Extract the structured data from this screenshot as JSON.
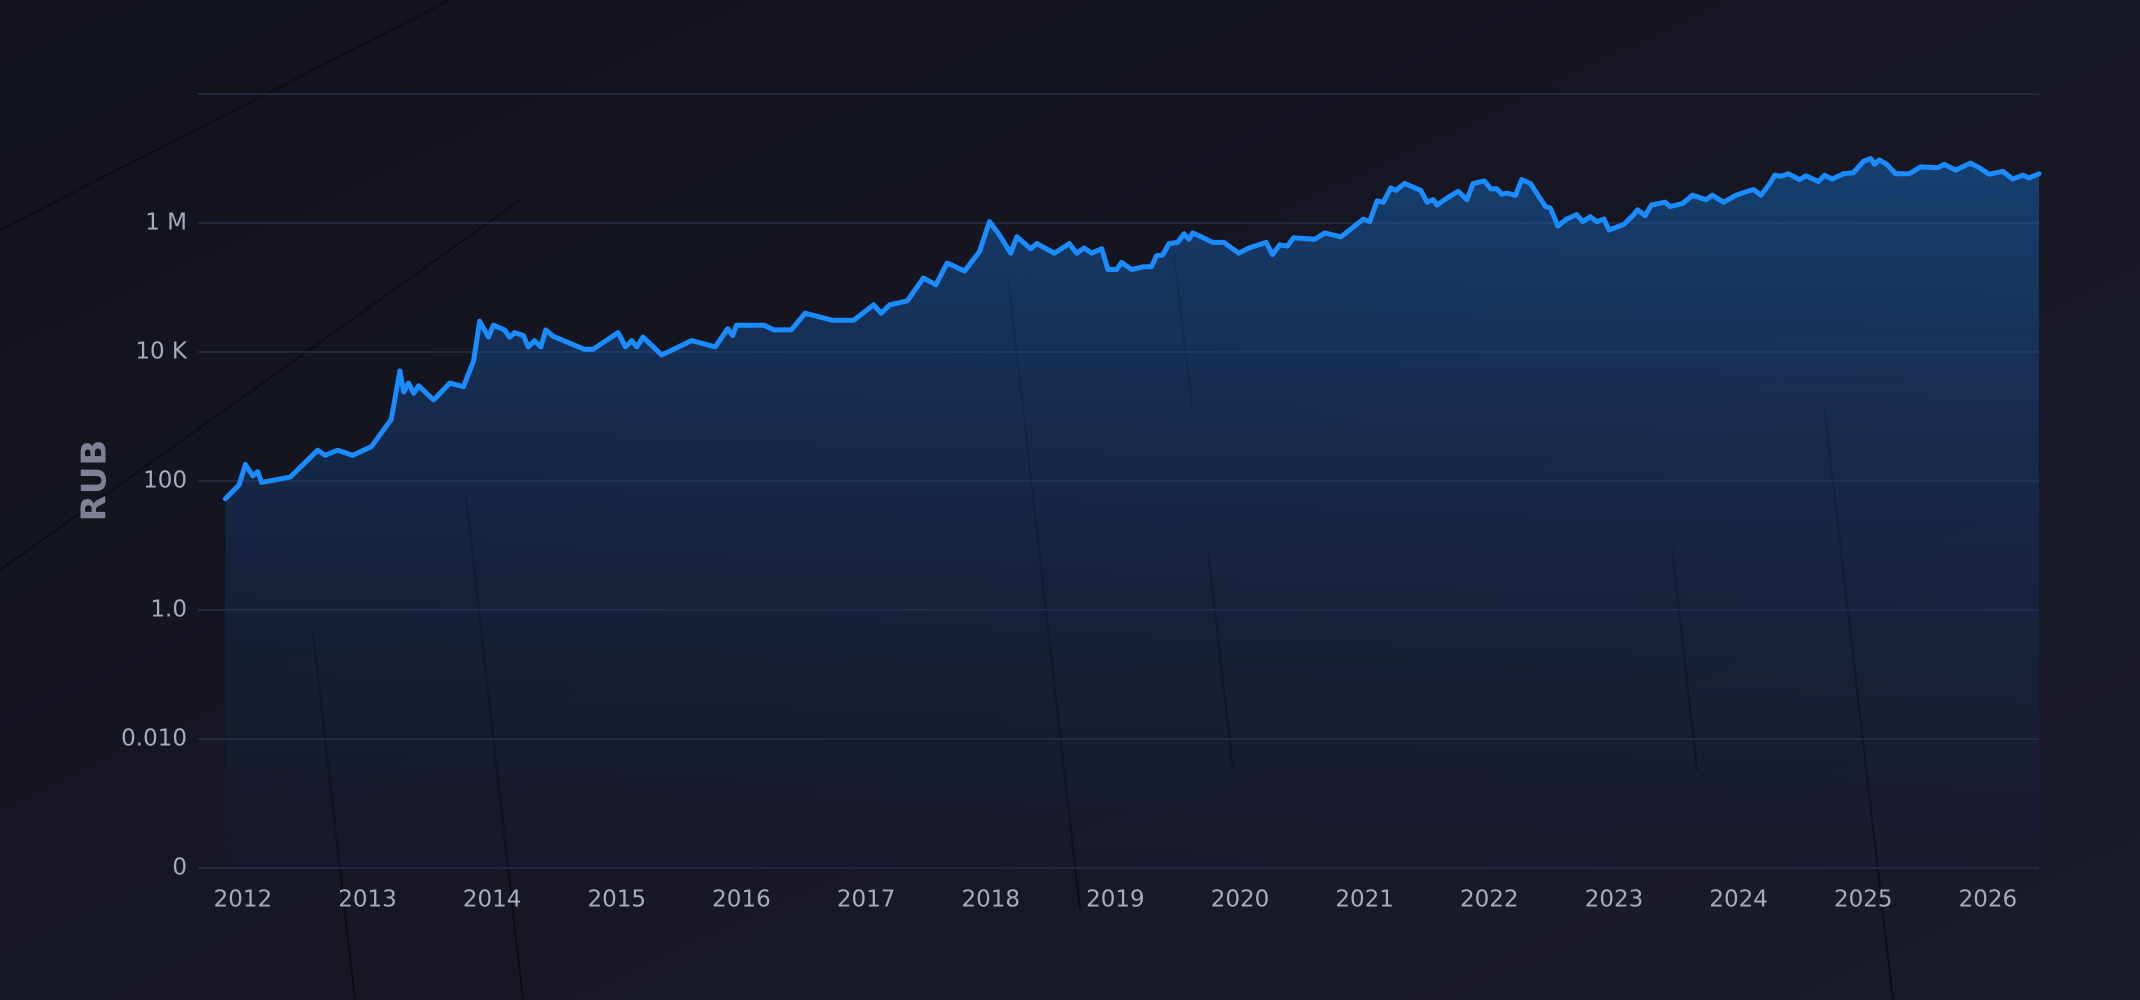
{
  "chart_data": {
    "type": "line",
    "y_label": "RUB",
    "yscale": "log",
    "grid": true,
    "color": "#1a8cff",
    "xlim": [
      2011.64,
      2026.41
    ],
    "xticks": [
      2012,
      2013,
      2014,
      2015,
      2016,
      2017,
      2018,
      2019,
      2020,
      2021,
      2022,
      2023,
      2024,
      2025,
      2026
    ],
    "ylim": [
      0.0001,
      100000000
    ],
    "yticks": [
      {
        "value": 0.0001,
        "label": "0"
      },
      {
        "value": 0.01,
        "label": "0.010"
      },
      {
        "value": 1,
        "label": "1.0"
      },
      100,
      {
        "value": 10000,
        "label": "10 K"
      },
      {
        "value": 1000000,
        "label": "1 M"
      }
    ],
    "x": [
      2011.86,
      2011.97,
      2012.02,
      2012.08,
      2012.12,
      2012.15,
      2012.38,
      2012.6,
      2012.66,
      2012.76,
      2012.88,
      2013.03,
      2013.19,
      2013.26,
      2013.29,
      2013.33,
      2013.37,
      2013.41,
      2013.53,
      2013.66,
      2013.77,
      2013.85,
      2013.9,
      2013.97,
      2014.01,
      2014.1,
      2014.14,
      2014.18,
      2014.25,
      2014.29,
      2014.34,
      2014.39,
      2014.43,
      2014.49,
      2014.74,
      2014.81,
      2015.01,
      2015.07,
      2015.12,
      2015.16,
      2015.21,
      2015.36,
      2015.6,
      2015.79,
      2015.89,
      2015.93,
      2015.96,
      2016.18,
      2016.26,
      2016.4,
      2016.51,
      2016.73,
      2016.9,
      2017.06,
      2017.12,
      2017.19,
      2017.33,
      2017.46,
      2017.56,
      2017.65,
      2017.79,
      2017.91,
      2017.99,
      2018.07,
      2018.16,
      2018.21,
      2018.32,
      2018.37,
      2018.51,
      2018.63,
      2018.69,
      2018.75,
      2018.81,
      2018.89,
      2018.94,
      2019.01,
      2019.05,
      2019.13,
      2019.23,
      2019.29,
      2019.33,
      2019.38,
      2019.43,
      2019.5,
      2019.55,
      2019.59,
      2019.62,
      2019.69,
      2019.78,
      2019.87,
      2019.99,
      2020.07,
      2020.21,
      2020.26,
      2020.32,
      2020.38,
      2020.43,
      2020.6,
      2020.68,
      2020.81,
      2020.99,
      2021.04,
      2021.1,
      2021.15,
      2021.21,
      2021.25,
      2021.32,
      2021.45,
      2021.5,
      2021.55,
      2021.58,
      2021.67,
      2021.75,
      2021.82,
      2021.87,
      2021.96,
      2022.01,
      2022.06,
      2022.1,
      2022.14,
      2022.21,
      2022.26,
      2022.33,
      2022.38,
      2022.45,
      2022.49,
      2022.55,
      2022.62,
      2022.7,
      2022.75,
      2022.81,
      2022.86,
      2022.92,
      2022.96,
      2023.08,
      2023.15,
      2023.19,
      2023.25,
      2023.3,
      2023.41,
      2023.45,
      2023.55,
      2023.63,
      2023.74,
      2023.79,
      2023.88,
      2023.98,
      2024.07,
      2024.12,
      2024.18,
      2024.25,
      2024.29,
      2024.34,
      2024.4,
      2024.49,
      2024.54,
      2024.64,
      2024.69,
      2024.75,
      2024.84,
      2024.92,
      2025.0,
      2025.06,
      2025.09,
      2025.13,
      2025.19,
      2025.26,
      2025.37,
      2025.46,
      2025.6,
      2025.65,
      2025.74,
      2025.86,
      2025.93,
      2026.01,
      2026.12,
      2026.2,
      2026.28,
      2026.33,
      2026.41
    ],
    "values": [
      53,
      87,
      180,
      120,
      140,
      95,
      115,
      300,
      250,
      300,
      250,
      340,
      900,
      5100,
      2400,
      3300,
      2300,
      3000,
      1800,
      3300,
      2900,
      7200,
      30000,
      17000,
      26000,
      22000,
      17000,
      20000,
      18000,
      12000,
      15000,
      12000,
      22000,
      17500,
      11000,
      11000,
      20000,
      12000,
      15000,
      12000,
      17000,
      9000,
      15000,
      12000,
      23000,
      18000,
      26000,
      26000,
      22000,
      22000,
      40000,
      31000,
      31000,
      54000,
      40000,
      54000,
      62000,
      140000,
      110000,
      240000,
      180000,
      360000,
      1050000,
      650000,
      340000,
      610000,
      400000,
      480000,
      340000,
      480000,
      340000,
      410000,
      340000,
      400000,
      190000,
      190000,
      245000,
      190000,
      210000,
      210000,
      310000,
      320000,
      480000,
      500000,
      680000,
      560000,
      700000,
      610000,
      500000,
      500000,
      340000,
      410000,
      500000,
      325000,
      460000,
      440000,
      590000,
      560000,
      700000,
      610000,
      1150000,
      1050000,
      2200000,
      2100000,
      3500000,
      3200000,
      4100000,
      3200000,
      2100000,
      2300000,
      1900000,
      2500000,
      3100000,
      2300000,
      4100000,
      4500000,
      3400000,
      3400000,
      2800000,
      2900000,
      2700000,
      4700000,
      4100000,
      2900000,
      1800000,
      1700000,
      900000,
      1150000,
      1350000,
      1050000,
      1250000,
      1050000,
      1150000,
      780000,
      950000,
      1300000,
      1600000,
      1300000,
      1900000,
      2100000,
      1800000,
      2000000,
      2700000,
      2300000,
      2700000,
      2100000,
      2700000,
      3100000,
      3300000,
      2700000,
      4100000,
      5500000,
      5300000,
      5800000,
      4700000,
      5400000,
      4400000,
      5500000,
      4800000,
      5800000,
      6000000,
      9000000,
      10000000,
      8200000,
      9500000,
      8100000,
      5800000,
      5800000,
      7400000,
      7200000,
      8100000,
      6600000,
      8500000,
      7200000,
      5700000,
      6300000,
      4800000,
      5500000,
      5000000,
      5800000
    ]
  }
}
